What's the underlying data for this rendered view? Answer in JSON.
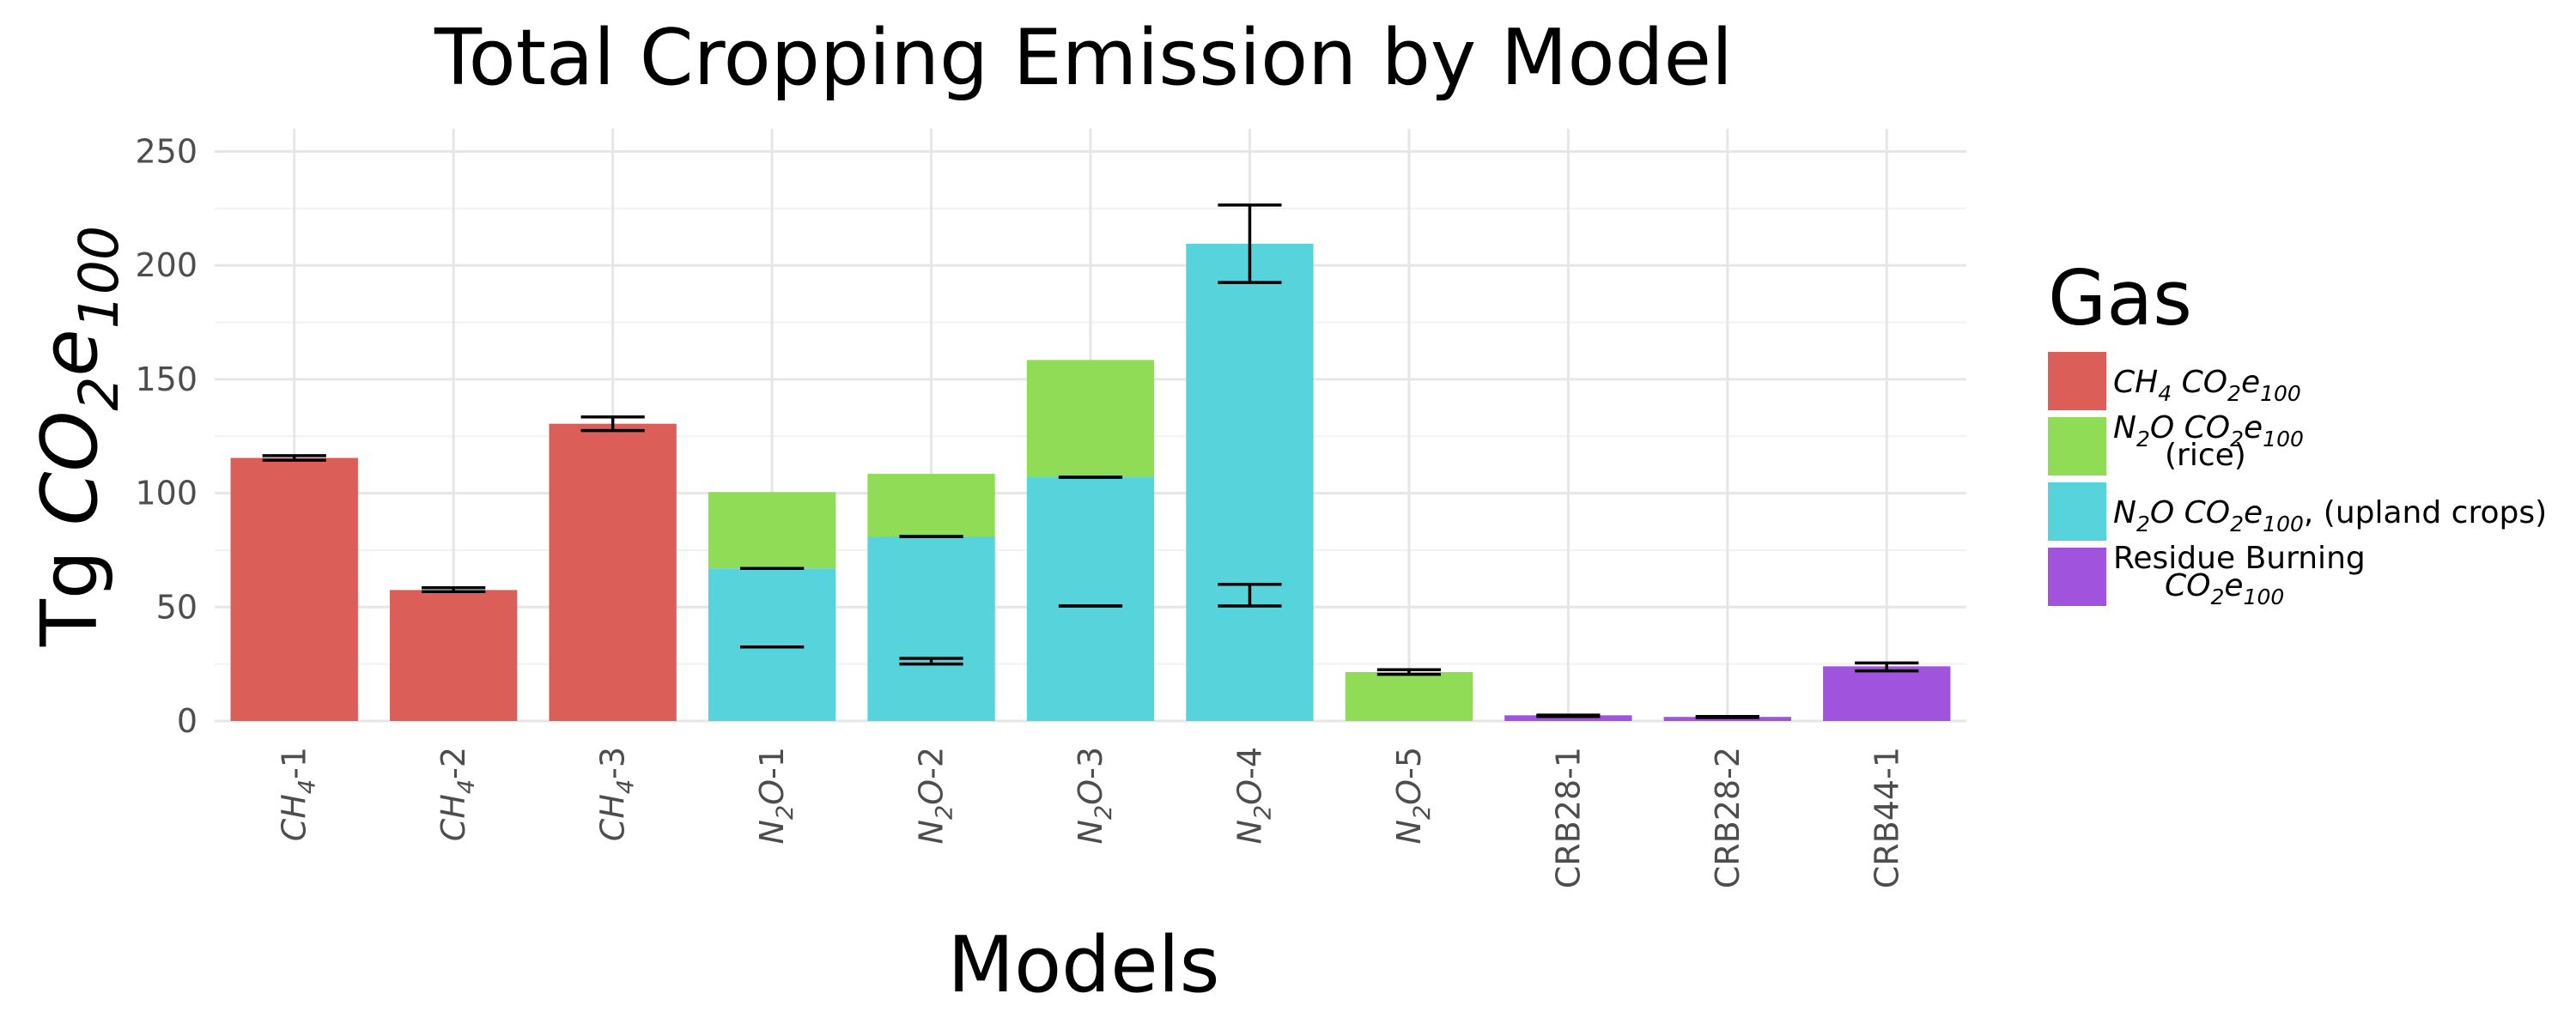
{
  "chart_data": {
    "type": "bar",
    "stacked": true,
    "title": "Total Cropping Emission by Model",
    "xlabel": "Models",
    "ylabel": {
      "base": "Tg ",
      "it1": "CO",
      "sub1": "2",
      "it2": "e",
      "sub2": "100"
    },
    "ylim": [
      0,
      260
    ],
    "yticks": [
      0,
      50,
      100,
      150,
      200,
      250
    ],
    "grid": true,
    "legend_position": "right",
    "legend_title": "Gas",
    "categories": [
      {
        "label": "CH4-1",
        "parts": [
          {
            "t": "CH",
            "i": true
          },
          {
            "t": "4",
            "sub": true,
            "i": true
          },
          {
            "t": "-1"
          }
        ]
      },
      {
        "label": "CH4-2",
        "parts": [
          {
            "t": "CH",
            "i": true
          },
          {
            "t": "4",
            "sub": true,
            "i": true
          },
          {
            "t": "-2"
          }
        ]
      },
      {
        "label": "CH4-3",
        "parts": [
          {
            "t": "CH",
            "i": true
          },
          {
            "t": "4",
            "sub": true,
            "i": true
          },
          {
            "t": "-3"
          }
        ]
      },
      {
        "label": "N2O-1",
        "parts": [
          {
            "t": "N",
            "i": true
          },
          {
            "t": "2",
            "sub": true,
            "i": true
          },
          {
            "t": "O",
            "i": true
          },
          {
            "t": "-1"
          }
        ]
      },
      {
        "label": "N2O-2",
        "parts": [
          {
            "t": "N",
            "i": true
          },
          {
            "t": "2",
            "sub": true,
            "i": true
          },
          {
            "t": "O",
            "i": true
          },
          {
            "t": "-2"
          }
        ]
      },
      {
        "label": "N2O-3",
        "parts": [
          {
            "t": "N",
            "i": true
          },
          {
            "t": "2",
            "sub": true,
            "i": true
          },
          {
            "t": "O",
            "i": true
          },
          {
            "t": "-3"
          }
        ]
      },
      {
        "label": "N2O-4",
        "parts": [
          {
            "t": "N",
            "i": true
          },
          {
            "t": "2",
            "sub": true,
            "i": true
          },
          {
            "t": "O",
            "i": true
          },
          {
            "t": "-4"
          }
        ]
      },
      {
        "label": "N2O-5",
        "parts": [
          {
            "t": "N",
            "i": true
          },
          {
            "t": "2",
            "sub": true,
            "i": true
          },
          {
            "t": "O",
            "i": true
          },
          {
            "t": "-5"
          }
        ]
      },
      {
        "label": "CRB28-1",
        "parts": [
          {
            "t": "CRB28-1"
          }
        ]
      },
      {
        "label": "CRB28-2",
        "parts": [
          {
            "t": "CRB28-2"
          }
        ]
      },
      {
        "label": "CRB44-1",
        "parts": [
          {
            "t": "CRB44-1"
          }
        ]
      }
    ],
    "series": [
      {
        "key": "ch4",
        "color": "#dc5e58",
        "legend_lines": [
          [
            {
              "t": "CH",
              "i": true
            },
            {
              "t": "4",
              "sub": true,
              "i": true
            },
            {
              "t": " CO",
              "i": true
            },
            {
              "t": "2",
              "sub": true,
              "i": true
            },
            {
              "t": "e",
              "i": true
            },
            {
              "t": "100",
              "sub": true,
              "i": true
            }
          ]
        ],
        "values": [
          115.5,
          57.5,
          130.5,
          0,
          0,
          0,
          0,
          0,
          0,
          0,
          0
        ]
      },
      {
        "key": "n2o_upland",
        "color": "#57d3db",
        "legend_lines": [
          [
            {
              "t": "N",
              "i": true
            },
            {
              "t": "2",
              "sub": true,
              "i": true
            },
            {
              "t": "O CO",
              "i": true
            },
            {
              "t": "2",
              "sub": true,
              "i": true
            },
            {
              "t": "e",
              "i": true
            },
            {
              "t": "100",
              "sub": true,
              "i": true
            },
            {
              "t": ", (upland crops)"
            }
          ]
        ],
        "values": [
          0,
          0,
          0,
          67,
          81,
          107,
          209.5,
          0,
          0,
          0,
          0
        ]
      },
      {
        "key": "n2o_rice",
        "color": "#91dc56",
        "legend_lines": [
          [
            {
              "t": "N",
              "i": true
            },
            {
              "t": "2",
              "sub": true,
              "i": true
            },
            {
              "t": "O CO",
              "i": true
            },
            {
              "t": "2",
              "sub": true,
              "i": true
            },
            {
              "t": "e",
              "i": true
            },
            {
              "t": "100",
              "sub": true,
              "i": true
            }
          ],
          [
            {
              "t": "(rice)"
            }
          ]
        ],
        "values": [
          0,
          0,
          0,
          33.5,
          27.5,
          51.5,
          0,
          21.5,
          0,
          0,
          0
        ]
      },
      {
        "key": "residue",
        "color": "#a054de",
        "legend_lines": [
          [
            {
              "t": "Residue Burning"
            }
          ],
          [
            {
              "t": "CO",
              "i": true
            },
            {
              "t": "2",
              "sub": true,
              "i": true
            },
            {
              "t": "e",
              "i": true
            },
            {
              "t": "100",
              "sub": true,
              "i": true
            }
          ]
        ],
        "values": [
          0,
          0,
          0,
          0,
          0,
          0,
          0,
          0,
          2.5,
          1.8,
          24
        ]
      }
    ],
    "legend_order": [
      "ch4",
      "n2o_rice",
      "n2o_upland",
      "residue"
    ],
    "error_bars": [
      {
        "category": 0,
        "low": 114.5,
        "high": 116.5
      },
      {
        "category": 1,
        "low": 56.8,
        "high": 58.5
      },
      {
        "category": 2,
        "low": 127.5,
        "high": 133.5
      },
      {
        "category": 3,
        "low": 67,
        "high": 67
      },
      {
        "category": 3,
        "low": 32.5,
        "high": 32.5
      },
      {
        "category": 4,
        "low": 81,
        "high": 81
      },
      {
        "category": 4,
        "low": 25,
        "high": 27.5
      },
      {
        "category": 5,
        "low": 107,
        "high": 107
      },
      {
        "category": 5,
        "low": 50.5,
        "high": 50.5
      },
      {
        "category": 6,
        "low": 192.5,
        "high": 226.5
      },
      {
        "category": 6,
        "low": 50.5,
        "high": 60
      },
      {
        "category": 7,
        "low": 20.5,
        "high": 22.5
      },
      {
        "category": 8,
        "low": 2,
        "high": 2.6
      },
      {
        "category": 9,
        "low": 1.5,
        "high": 2
      },
      {
        "category": 10,
        "low": 22,
        "high": 25.5
      }
    ]
  }
}
